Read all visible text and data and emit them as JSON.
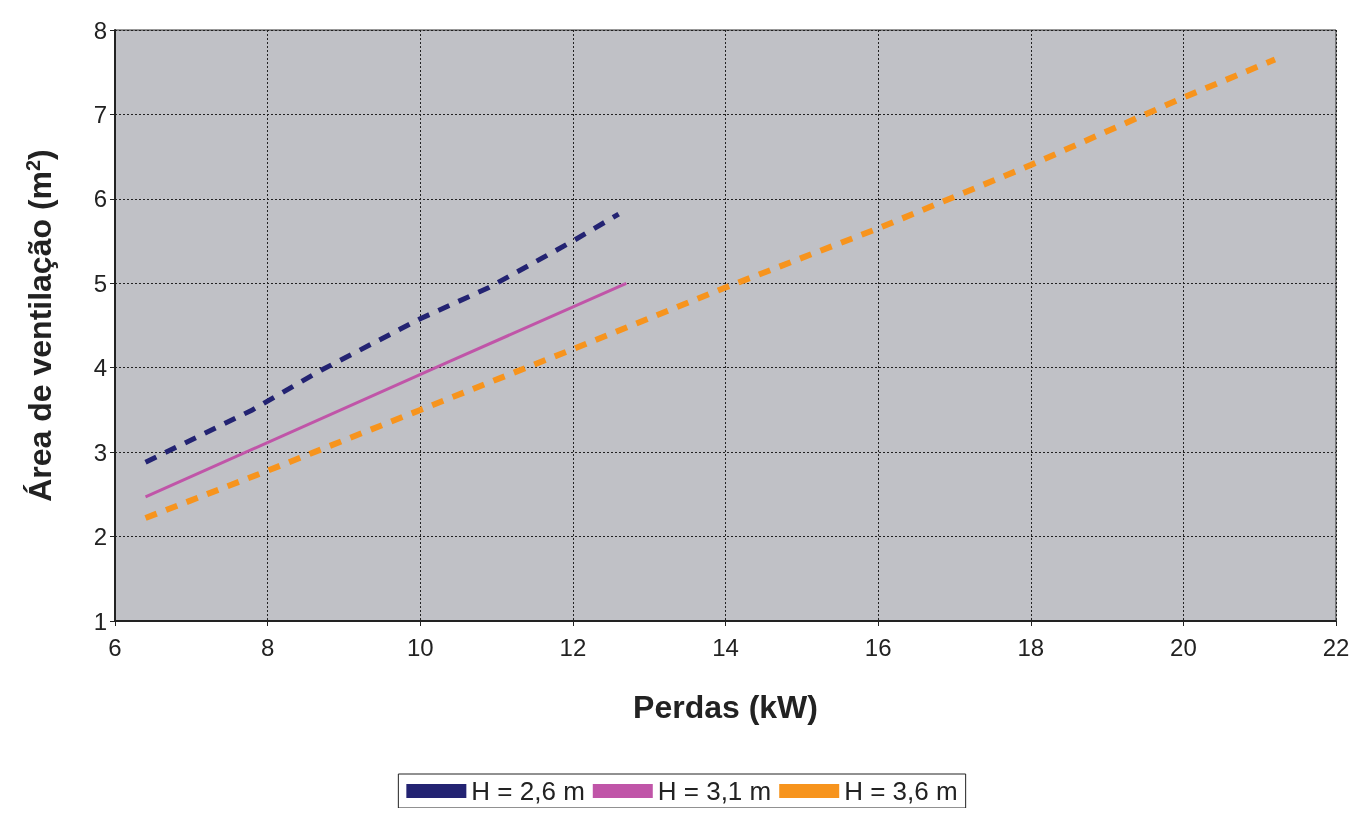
{
  "chart_data": {
    "type": "line",
    "xlabel": "Perdas (kW)",
    "ylabel": "Área de ventilação (m$^{2}$)",
    "xlim": [
      6,
      22
    ],
    "xticks": [
      6,
      8,
      10,
      12,
      14,
      16,
      18,
      20,
      22
    ],
    "ylim": [
      1,
      8
    ],
    "yticks": [
      1,
      2,
      3,
      4,
      5,
      6,
      7,
      8
    ],
    "grid": true,
    "legend": "bottom",
    "marker": "none",
    "series": [
      {
        "name": "H = 2,6 m",
        "color": "#232372",
        "line_style": "dashed",
        "x": [
          6.4,
          7.8,
          8.7,
          10,
          10.9,
          12,
          12.6
        ],
        "values": [
          2.88,
          3.5,
          3.97,
          4.58,
          4.95,
          5.5,
          5.82
        ]
      },
      {
        "name": "H = 3,1 m",
        "color": "#c055a8",
        "line_style": "solid",
        "x": [
          6.4,
          10.4,
          12.7
        ],
        "values": [
          2.47,
          4.08,
          5.0
        ]
      },
      {
        "name": "H = 3,6 m",
        "color": "#f7941d",
        "line_style": "dashed",
        "x": [
          6.4,
          8,
          10,
          12,
          14,
          16,
          18,
          20,
          21.2
        ],
        "values": [
          2.22,
          2.78,
          3.5,
          4.22,
          4.95,
          5.65,
          6.4,
          7.2,
          7.65
        ]
      }
    ]
  }
}
